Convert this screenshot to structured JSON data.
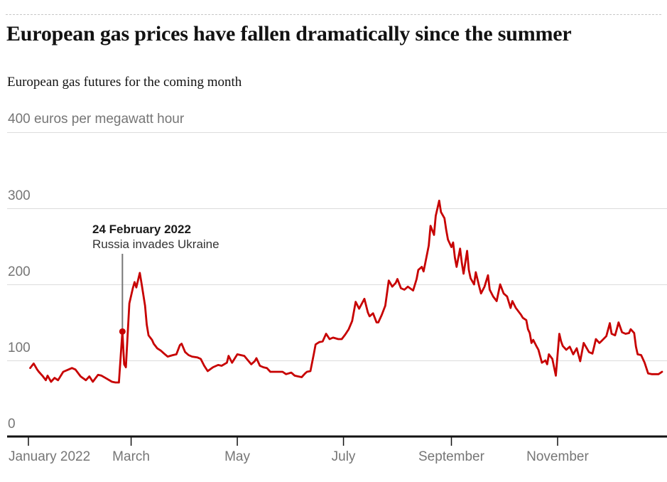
{
  "colors": {
    "line": "#c70000",
    "text_dark": "#121212",
    "text_muted": "#767676",
    "grid": "#dcdcdc",
    "axis": "#121212",
    "annotation_line": "#767676",
    "top_rule": "#c7c7c7"
  },
  "chart_data": {
    "type": "line",
    "title": "European gas prices have fallen dramatically since the summer",
    "subtitle": "European gas futures for the coming month",
    "unit_top_label": "400 euros per megawatt hour",
    "ylabel": "euros per megawatt hour",
    "x_unit": "day of year 2022",
    "xlim_days": [
      1,
      365
    ],
    "ylim": [
      0,
      400
    ],
    "grid": "horizontal",
    "grid_values": [
      400,
      300,
      200,
      100
    ],
    "yticks": [
      {
        "value": 300,
        "label": "300"
      },
      {
        "value": 200,
        "label": "200"
      },
      {
        "value": 100,
        "label": "100"
      },
      {
        "value": 0,
        "label": "0"
      }
    ],
    "xticks": [
      {
        "day": 1,
        "label": "January 2022",
        "align": "left"
      },
      {
        "day": 60,
        "label": "March",
        "align": "center"
      },
      {
        "day": 121,
        "label": "May",
        "align": "center"
      },
      {
        "day": 182,
        "label": "July",
        "align": "center"
      },
      {
        "day": 244,
        "label": "September",
        "align": "center"
      },
      {
        "day": 305,
        "label": "November",
        "align": "center"
      }
    ],
    "legend": "none",
    "annotation": {
      "label_title": "24 February 2022",
      "label_text": "Russia invades Ukraine",
      "day": 55,
      "value": 138
    },
    "series": [
      {
        "name": "European gas futures for the coming month (euros per megawatt hour)",
        "points": [
          [
            2,
            90
          ],
          [
            4,
            96
          ],
          [
            6,
            88
          ],
          [
            7,
            85
          ],
          [
            9,
            80
          ],
          [
            11,
            74
          ],
          [
            12,
            80
          ],
          [
            14,
            72
          ],
          [
            16,
            77
          ],
          [
            18,
            74
          ],
          [
            21,
            85
          ],
          [
            24,
            88
          ],
          [
            26,
            90
          ],
          [
            28,
            88
          ],
          [
            31,
            79
          ],
          [
            34,
            74
          ],
          [
            36,
            79
          ],
          [
            38,
            72
          ],
          [
            41,
            81
          ],
          [
            43,
            80
          ],
          [
            46,
            76
          ],
          [
            49,
            72
          ],
          [
            51,
            71
          ],
          [
            53,
            71
          ],
          [
            55,
            138
          ],
          [
            56,
            95
          ],
          [
            57,
            91
          ],
          [
            59,
            175
          ],
          [
            61,
            195
          ],
          [
            62,
            203
          ],
          [
            63,
            196
          ],
          [
            65,
            215
          ],
          [
            66,
            201
          ],
          [
            68,
            172
          ],
          [
            69,
            147
          ],
          [
            70,
            133
          ],
          [
            72,
            127
          ],
          [
            73,
            122
          ],
          [
            75,
            116
          ],
          [
            77,
            113
          ],
          [
            79,
            109
          ],
          [
            81,
            105
          ],
          [
            84,
            107
          ],
          [
            86,
            108
          ],
          [
            88,
            120
          ],
          [
            89,
            122
          ],
          [
            91,
            111
          ],
          [
            93,
            107
          ],
          [
            95,
            105
          ],
          [
            98,
            104
          ],
          [
            100,
            102
          ],
          [
            102,
            93
          ],
          [
            104,
            86
          ],
          [
            107,
            91
          ],
          [
            110,
            94
          ],
          [
            112,
            93
          ],
          [
            115,
            97
          ],
          [
            116,
            106
          ],
          [
            118,
            97
          ],
          [
            121,
            108
          ],
          [
            123,
            107
          ],
          [
            125,
            106
          ],
          [
            129,
            95
          ],
          [
            131,
            99
          ],
          [
            132,
            103
          ],
          [
            134,
            93
          ],
          [
            136,
            91
          ],
          [
            138,
            90
          ],
          [
            140,
            85
          ],
          [
            144,
            85
          ],
          [
            147,
            85
          ],
          [
            149,
            82
          ],
          [
            152,
            84
          ],
          [
            154,
            80
          ],
          [
            156,
            79
          ],
          [
            158,
            78
          ],
          [
            160,
            83
          ],
          [
            161,
            85
          ],
          [
            163,
            86
          ],
          [
            165,
            109
          ],
          [
            166,
            121
          ],
          [
            168,
            124
          ],
          [
            170,
            125
          ],
          [
            172,
            135
          ],
          [
            174,
            128
          ],
          [
            176,
            130
          ],
          [
            179,
            128
          ],
          [
            181,
            128
          ],
          [
            183,
            134
          ],
          [
            185,
            141
          ],
          [
            187,
            152
          ],
          [
            189,
            177
          ],
          [
            191,
            168
          ],
          [
            194,
            181
          ],
          [
            196,
            163
          ],
          [
            197,
            158
          ],
          [
            199,
            162
          ],
          [
            201,
            150
          ],
          [
            202,
            150
          ],
          [
            204,
            160
          ],
          [
            206,
            172
          ],
          [
            208,
            205
          ],
          [
            210,
            197
          ],
          [
            212,
            202
          ],
          [
            213,
            207
          ],
          [
            215,
            195
          ],
          [
            217,
            193
          ],
          [
            219,
            197
          ],
          [
            222,
            192
          ],
          [
            224,
            207
          ],
          [
            225,
            219
          ],
          [
            227,
            223
          ],
          [
            228,
            217
          ],
          [
            229,
            228
          ],
          [
            231,
            251
          ],
          [
            232,
            277
          ],
          [
            234,
            265
          ],
          [
            235,
            290
          ],
          [
            237,
            310
          ],
          [
            238,
            295
          ],
          [
            240,
            287
          ],
          [
            241,
            272
          ],
          [
            242,
            259
          ],
          [
            244,
            249
          ],
          [
            245,
            255
          ],
          [
            246,
            235
          ],
          [
            247,
            223
          ],
          [
            249,
            247
          ],
          [
            250,
            228
          ],
          [
            251,
            214
          ],
          [
            253,
            244
          ],
          [
            254,
            219
          ],
          [
            255,
            208
          ],
          [
            257,
            200
          ],
          [
            258,
            216
          ],
          [
            260,
            197
          ],
          [
            261,
            188
          ],
          [
            263,
            197
          ],
          [
            265,
            212
          ],
          [
            266,
            193
          ],
          [
            268,
            184
          ],
          [
            270,
            178
          ],
          [
            272,
            200
          ],
          [
            274,
            188
          ],
          [
            276,
            184
          ],
          [
            278,
            169
          ],
          [
            279,
            178
          ],
          [
            281,
            169
          ],
          [
            284,
            160
          ],
          [
            285,
            156
          ],
          [
            287,
            153
          ],
          [
            288,
            141
          ],
          [
            289,
            136
          ],
          [
            290,
            123
          ],
          [
            291,
            127
          ],
          [
            293,
            118
          ],
          [
            294,
            114
          ],
          [
            296,
            97
          ],
          [
            298,
            100
          ],
          [
            299,
            95
          ],
          [
            300,
            108
          ],
          [
            302,
            102
          ],
          [
            304,
            80
          ],
          [
            306,
            135
          ],
          [
            307,
            125
          ],
          [
            308,
            119
          ],
          [
            310,
            114
          ],
          [
            312,
            118
          ],
          [
            313,
            113
          ],
          [
            314,
            108
          ],
          [
            316,
            116
          ],
          [
            318,
            99
          ],
          [
            320,
            123
          ],
          [
            321,
            119
          ],
          [
            323,
            111
          ],
          [
            325,
            109
          ],
          [
            326,
            118
          ],
          [
            327,
            128
          ],
          [
            329,
            123
          ],
          [
            330,
            125
          ],
          [
            333,
            132
          ],
          [
            335,
            149
          ],
          [
            336,
            135
          ],
          [
            338,
            133
          ],
          [
            339,
            141
          ],
          [
            340,
            150
          ],
          [
            342,
            137
          ],
          [
            344,
            135
          ],
          [
            346,
            136
          ],
          [
            347,
            141
          ],
          [
            349,
            136
          ],
          [
            350,
            118
          ],
          [
            351,
            108
          ],
          [
            353,
            107
          ],
          [
            355,
            97
          ],
          [
            357,
            83
          ],
          [
            359,
            82
          ],
          [
            361,
            82
          ],
          [
            363,
            82
          ],
          [
            365,
            85
          ]
        ]
      }
    ]
  }
}
